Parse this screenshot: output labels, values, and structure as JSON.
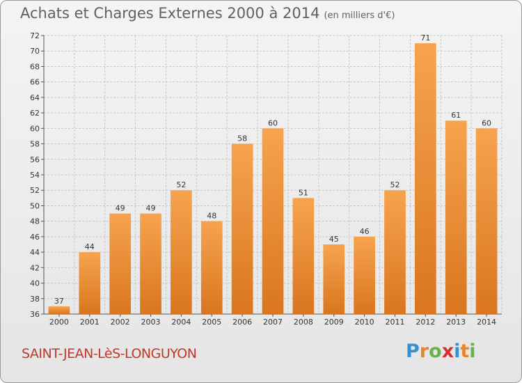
{
  "title": "Achats et Charges Externes 2000 à 2014",
  "unit": "(en milliers d'€)",
  "commune": "SAINT-JEAN-LèS-LONGUYON",
  "logo": {
    "letters": [
      "P",
      "r",
      "o",
      "x",
      "i",
      "t",
      "i"
    ],
    "colors": [
      "#3a8fd1",
      "#e8852a",
      "#6ab04c",
      "#d63031",
      "#3a8fd1",
      "#e8852a",
      "#6ab04c"
    ]
  },
  "colors": {
    "bar_top": "#f7a34e",
    "bar_bottom": "#d9761f",
    "grid": "#c8c8c8",
    "commune": "#c0392b"
  },
  "chart_data": {
    "type": "bar",
    "categories": [
      "2000",
      "2001",
      "2002",
      "2003",
      "2004",
      "2005",
      "2006",
      "2007",
      "2008",
      "2009",
      "2010",
      "2011",
      "2012",
      "2013",
      "2014"
    ],
    "values": [
      37,
      44,
      49,
      49,
      52,
      48,
      58,
      60,
      51,
      45,
      46,
      52,
      71,
      61,
      60
    ],
    "ylim": [
      36,
      72
    ],
    "ytick_step": 2,
    "grid": true,
    "xlabel": "",
    "ylabel": ""
  }
}
